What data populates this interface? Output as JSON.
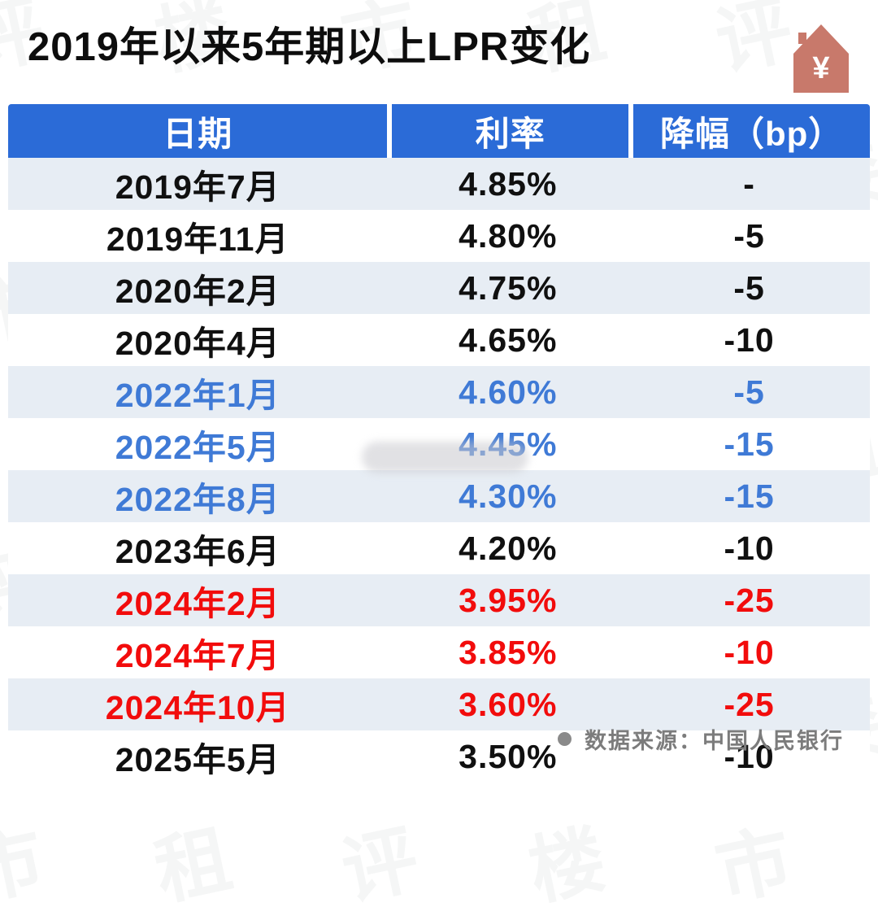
{
  "title": "2019年以来5年期以上LPR变化",
  "icon": {
    "name": "house-yuan-icon",
    "symbol": "¥",
    "color": "#c8796b"
  },
  "colors": {
    "header_bg": "#2b6bd7",
    "row_shaded_bg": "#e7edf4",
    "text_black": "#101010",
    "text_blue": "#3f7ad6",
    "text_red": "#f20c0c"
  },
  "watermark": {
    "text": "评楼市租"
  },
  "table": {
    "headers": [
      "日期",
      "利率",
      "降幅（bp）"
    ],
    "rows": [
      {
        "date": "2019年7月",
        "rate": "4.85%",
        "change": "-",
        "color": "black"
      },
      {
        "date": "2019年11月",
        "rate": "4.80%",
        "change": "-5",
        "color": "black"
      },
      {
        "date": "2020年2月",
        "rate": "4.75%",
        "change": "-5",
        "color": "black"
      },
      {
        "date": "2020年4月",
        "rate": "4.65%",
        "change": "-10",
        "color": "black"
      },
      {
        "date": "2022年1月",
        "rate": "4.60%",
        "change": "-5",
        "color": "blue"
      },
      {
        "date": "2022年5月",
        "rate": "4.45%",
        "change": "-15",
        "color": "blue"
      },
      {
        "date": "2022年8月",
        "rate": "4.30%",
        "change": "-15",
        "color": "blue"
      },
      {
        "date": "2023年6月",
        "rate": "4.20%",
        "change": "-10",
        "color": "black"
      },
      {
        "date": "2024年2月",
        "rate": "3.95%",
        "change": "-25",
        "color": "red"
      },
      {
        "date": "2024年7月",
        "rate": "3.85%",
        "change": "-10",
        "color": "red"
      },
      {
        "date": "2024年10月",
        "rate": "3.60%",
        "change": "-25",
        "color": "red"
      },
      {
        "date": "2025年5月",
        "rate": "3.50%",
        "change": "-10",
        "color": "black"
      }
    ]
  },
  "footer": {
    "source_label": "数据来源：中国人民银行"
  },
  "chart_data": {
    "type": "table",
    "title": "2019年以来5年期以上LPR变化",
    "columns": [
      "日期",
      "利率",
      "降幅（bp）"
    ],
    "rows": [
      [
        "2019年7月",
        "4.85%",
        "-"
      ],
      [
        "2019年11月",
        "4.80%",
        "-5"
      ],
      [
        "2020年2月",
        "4.75%",
        "-5"
      ],
      [
        "2020年4月",
        "4.65%",
        "-10"
      ],
      [
        "2022年1月",
        "4.60%",
        "-5"
      ],
      [
        "2022年5月",
        "4.45%",
        "-15"
      ],
      [
        "2022年8月",
        "4.30%",
        "-15"
      ],
      [
        "2023年6月",
        "4.20%",
        "-10"
      ],
      [
        "2024年2月",
        "3.95%",
        "-25"
      ],
      [
        "2024年7月",
        "3.85%",
        "-10"
      ],
      [
        "2024年10月",
        "3.60%",
        "-25"
      ],
      [
        "2025年5月",
        "3.50%",
        "-10"
      ]
    ],
    "rates_numeric": [
      4.85,
      4.8,
      4.75,
      4.65,
      4.6,
      4.45,
      4.3,
      4.2,
      3.95,
      3.85,
      3.6,
      3.5
    ],
    "changes_bp": [
      null,
      -5,
      -5,
      -10,
      -5,
      -15,
      -15,
      -10,
      -25,
      -10,
      -25,
      -10
    ],
    "source": "数据来源：中国人民银行"
  }
}
